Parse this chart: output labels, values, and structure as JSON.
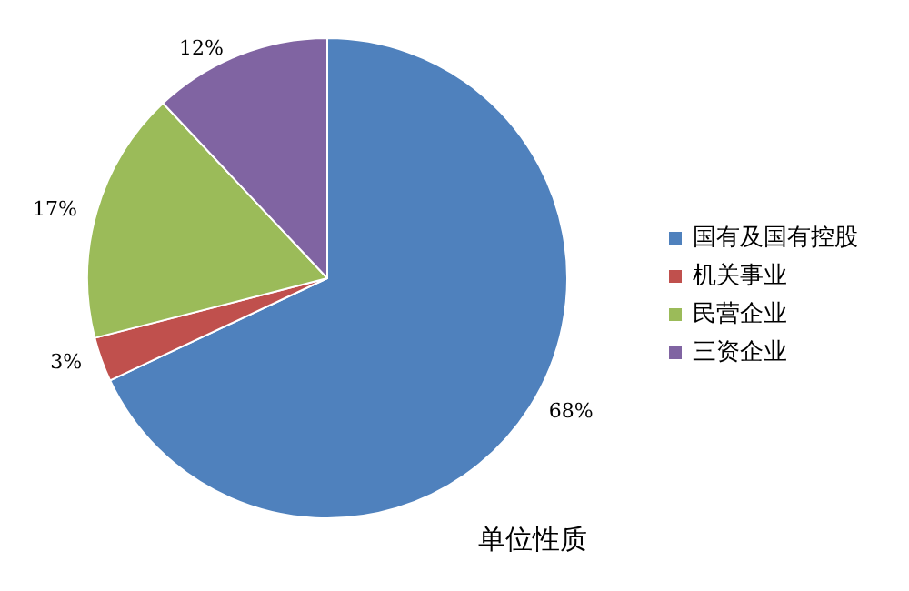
{
  "chart_data": {
    "type": "pie",
    "title": "单位性质",
    "categories": [
      "国有及国有控股",
      "机关事业",
      "民营企业",
      "三资企业"
    ],
    "values": [
      68,
      3,
      17,
      12
    ],
    "colors": [
      "#4f81bd",
      "#c0504d",
      "#9bbb59",
      "#8064a2"
    ],
    "value_labels": [
      "68%",
      "3%",
      "17%",
      "12%"
    ],
    "legend": "right"
  }
}
